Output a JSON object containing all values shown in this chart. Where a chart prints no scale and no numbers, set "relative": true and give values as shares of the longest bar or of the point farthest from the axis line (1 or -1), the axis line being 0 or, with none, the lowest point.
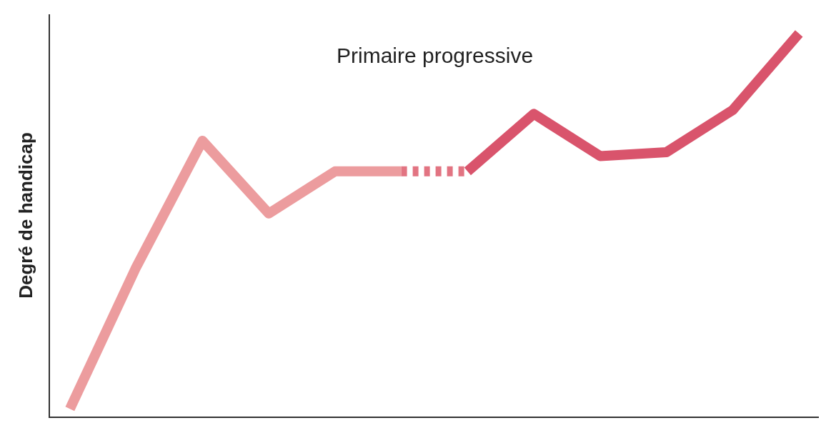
{
  "chart_data": {
    "type": "line",
    "title": "Primaire progressive",
    "ylabel": "Degré de handicap",
    "relative": true,
    "marker": "none",
    "categories": [
      null,
      null,
      null,
      null,
      null,
      null,
      null,
      null,
      null,
      null,
      null,
      null
    ],
    "series": [
      {
        "color": "#ec9c9e",
        "line_style": "solid",
        "values": [
          0.02,
          0.39,
          0.72,
          0.53,
          0.64,
          0.64,
          null,
          null,
          null,
          null,
          null,
          null
        ]
      },
      {
        "color": "#e27482",
        "line_style": "dashed",
        "values": [
          null,
          null,
          null,
          null,
          null,
          0.64,
          0.64,
          null,
          null,
          null,
          null,
          null
        ]
      },
      {
        "color": "#d9546c",
        "line_style": "solid",
        "values": [
          null,
          null,
          null,
          null,
          null,
          null,
          0.64,
          0.79,
          0.68,
          0.69,
          0.8,
          1.0
        ]
      }
    ]
  }
}
